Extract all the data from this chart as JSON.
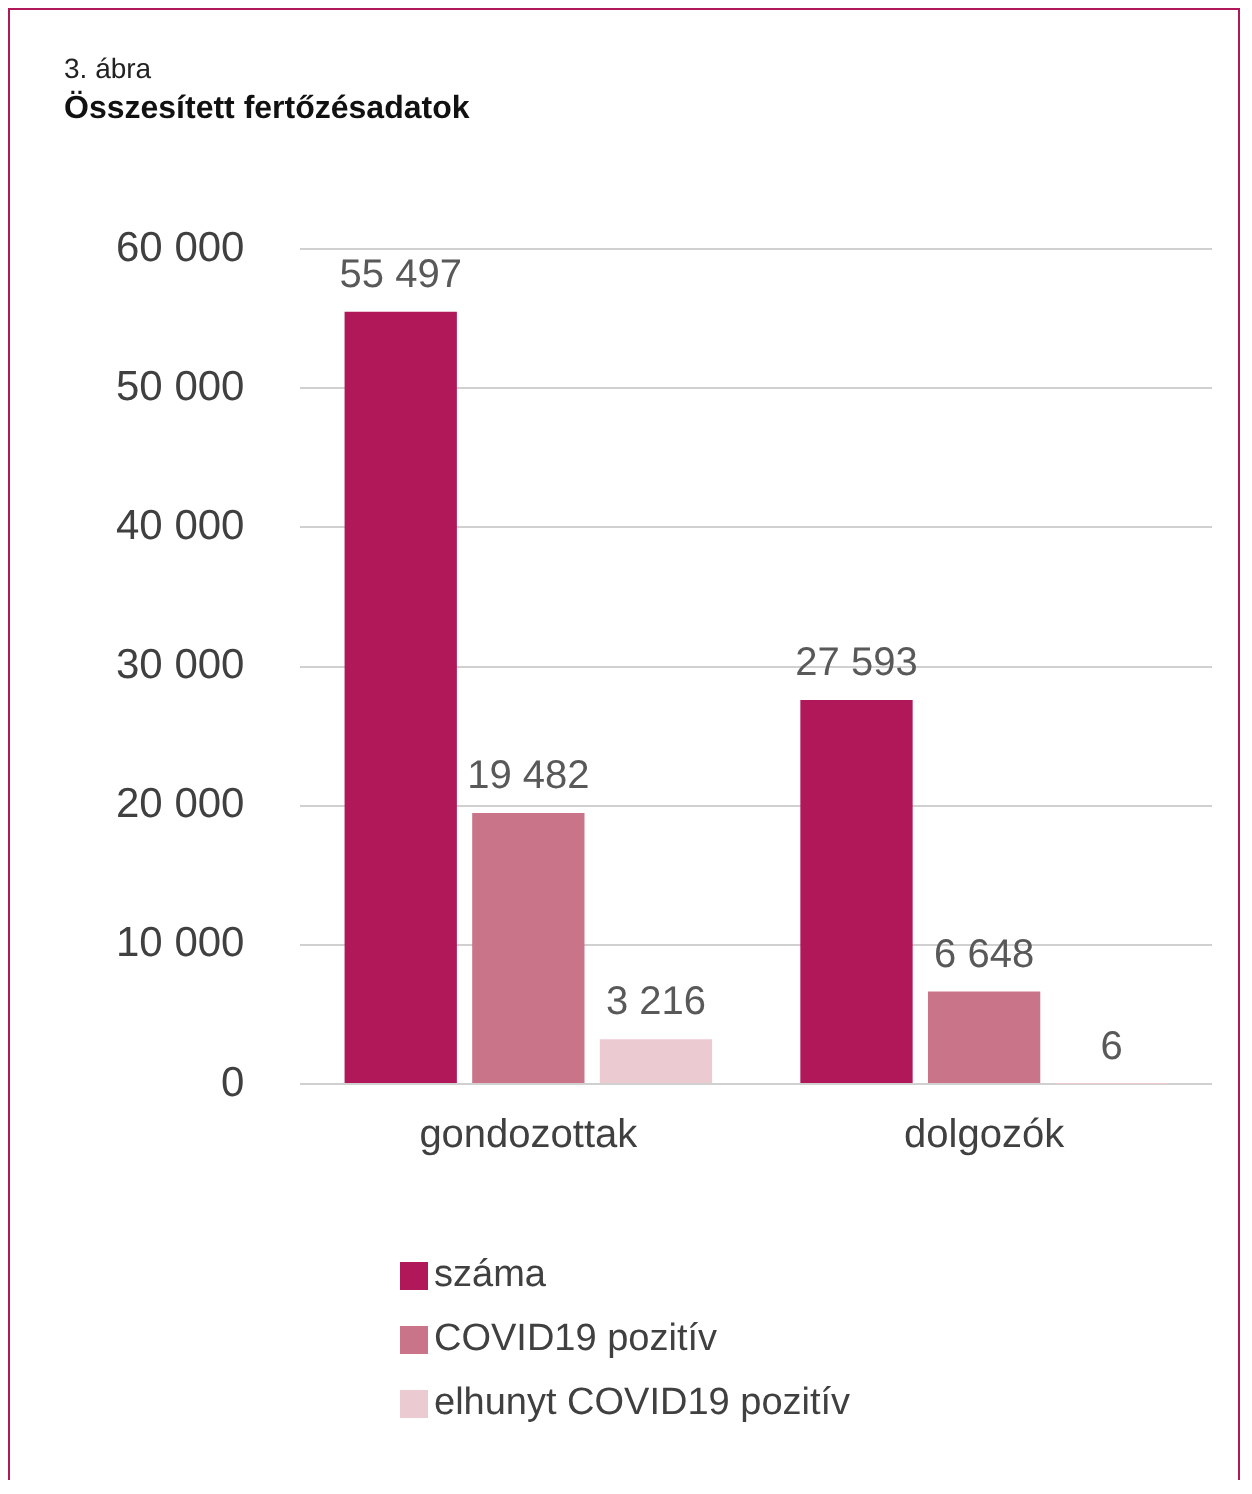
{
  "chart_data": {
    "type": "bar",
    "subtitle": "3. ábra",
    "title": "Összesített fertőzésadatok",
    "categories": [
      "gondozottak",
      "dolgozók"
    ],
    "series": [
      {
        "name": "száma",
        "color": "#b0185a",
        "values": [
          55497,
          27593
        ],
        "value_labels": [
          "55 497",
          "27 593"
        ]
      },
      {
        "name": "COVID19 pozitív",
        "color": "#c97489",
        "values": [
          19482,
          6648
        ],
        "value_labels": [
          "19 482",
          "6 648"
        ]
      },
      {
        "name": "elhunyt COVID19 pozitív",
        "color": "#eccad2",
        "values": [
          3216,
          6
        ],
        "value_labels": [
          "3 216",
          "6"
        ]
      }
    ],
    "ylim": [
      0,
      60000
    ],
    "yticks": [
      {
        "value": 0,
        "label": "0"
      },
      {
        "value": 10000,
        "label": "10 000"
      },
      {
        "value": 20000,
        "label": "20 000"
      },
      {
        "value": 30000,
        "label": "30 000"
      },
      {
        "value": 40000,
        "label": "40 000"
      },
      {
        "value": 50000,
        "label": "50 000"
      },
      {
        "value": 60000,
        "label": "60 000"
      }
    ],
    "grid": "y",
    "legend": "bottom"
  }
}
